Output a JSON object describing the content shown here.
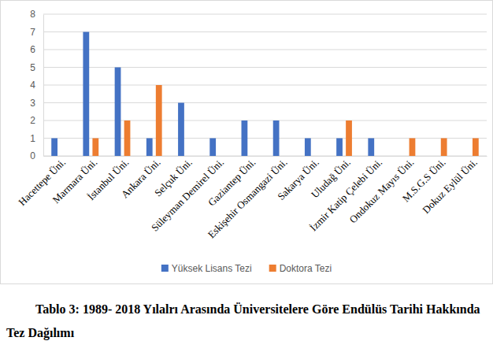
{
  "chart_data": {
    "type": "bar",
    "title": "Tablo 3: 1989- 2018 Yılalrı Arasında Üniversitelere Göre Endülüs Tarihi Hakkında Tez Dağılımı",
    "categories": [
      "Hacettepe Üni.",
      "Marmara Üni.",
      "İstanbul Üni.",
      "Ankara Üni.",
      "Selçuk Üni.",
      "Süleyman Demirel Üni.",
      "Gaziantep Üni.",
      "Eskişehir Osmangazi Üni.",
      "Sakarya Üni.",
      "Uludağ Üni.",
      "İzmir Katip Çelebi Üni.",
      "Ondokuz Mayıs Üni.",
      "M.S.G.S Üni.",
      "Dokuz Eylül Üni."
    ],
    "series": [
      {
        "name": "Yüksek Lisans Tezi",
        "color": "#4472c4",
        "values": [
          1,
          7,
          5,
          1,
          3,
          1,
          2,
          2,
          1,
          1,
          1,
          0,
          0,
          0
        ]
      },
      {
        "name": "Doktora Tezi",
        "color": "#ed7d31",
        "values": [
          0,
          1,
          2,
          4,
          0,
          0,
          0,
          0,
          0,
          2,
          0,
          1,
          1,
          1
        ]
      }
    ],
    "ylim": [
      0,
      8
    ],
    "yticks": [
      0,
      1,
      2,
      3,
      4,
      5,
      6,
      7,
      8
    ],
    "grid": true,
    "legend": "bottom"
  }
}
